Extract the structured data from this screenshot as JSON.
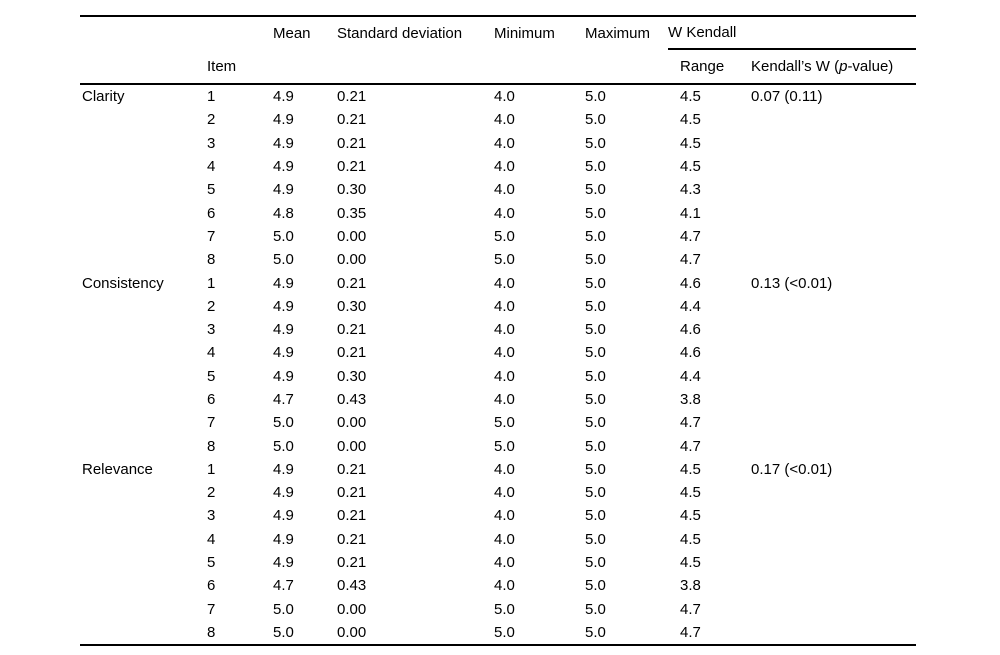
{
  "table": {
    "header": {
      "item": "Item",
      "mean": "Mean",
      "std_dev": "Standard deviation",
      "minimum": "Minimum",
      "maximum": "Maximum",
      "w_kendall_group": "W Kendall",
      "range": "Range",
      "kendalls_w_prefix": "Kendall’s W (",
      "kendalls_w_italic": "p",
      "kendalls_w_suffix": "-value)"
    },
    "sections": [
      {
        "label": "Clarity",
        "kendalls_w": "0.07 (0.11)",
        "rows": [
          {
            "item": "1",
            "mean": "4.9",
            "sd": "0.21",
            "min": "4.0",
            "max": "5.0",
            "range": "4.5"
          },
          {
            "item": "2",
            "mean": "4.9",
            "sd": "0.21",
            "min": "4.0",
            "max": "5.0",
            "range": "4.5"
          },
          {
            "item": "3",
            "mean": "4.9",
            "sd": "0.21",
            "min": "4.0",
            "max": "5.0",
            "range": "4.5"
          },
          {
            "item": "4",
            "mean": "4.9",
            "sd": "0.21",
            "min": "4.0",
            "max": "5.0",
            "range": "4.5"
          },
          {
            "item": "5",
            "mean": "4.9",
            "sd": "0.30",
            "min": "4.0",
            "max": "5.0",
            "range": "4.3"
          },
          {
            "item": "6",
            "mean": "4.8",
            "sd": "0.35",
            "min": "4.0",
            "max": "5.0",
            "range": "4.1"
          },
          {
            "item": "7",
            "mean": "5.0",
            "sd": "0.00",
            "min": "5.0",
            "max": "5.0",
            "range": "4.7"
          },
          {
            "item": "8",
            "mean": "5.0",
            "sd": "0.00",
            "min": "5.0",
            "max": "5.0",
            "range": "4.7"
          }
        ]
      },
      {
        "label": "Consistency",
        "kendalls_w": "0.13 (<0.01)",
        "rows": [
          {
            "item": "1",
            "mean": "4.9",
            "sd": "0.21",
            "min": "4.0",
            "max": "5.0",
            "range": "4.6"
          },
          {
            "item": "2",
            "mean": "4.9",
            "sd": "0.30",
            "min": "4.0",
            "max": "5.0",
            "range": "4.4"
          },
          {
            "item": "3",
            "mean": "4.9",
            "sd": "0.21",
            "min": "4.0",
            "max": "5.0",
            "range": "4.6"
          },
          {
            "item": "4",
            "mean": "4.9",
            "sd": "0.21",
            "min": "4.0",
            "max": "5.0",
            "range": "4.6"
          },
          {
            "item": "5",
            "mean": "4.9",
            "sd": "0.30",
            "min": "4.0",
            "max": "5.0",
            "range": "4.4"
          },
          {
            "item": "6",
            "mean": "4.7",
            "sd": "0.43",
            "min": "4.0",
            "max": "5.0",
            "range": "3.8"
          },
          {
            "item": "7",
            "mean": "5.0",
            "sd": "0.00",
            "min": "5.0",
            "max": "5.0",
            "range": "4.7"
          },
          {
            "item": "8",
            "mean": "5.0",
            "sd": "0.00",
            "min": "5.0",
            "max": "5.0",
            "range": "4.7"
          }
        ]
      },
      {
        "label": "Relevance",
        "kendalls_w": "0.17 (<0.01)",
        "rows": [
          {
            "item": "1",
            "mean": "4.9",
            "sd": "0.21",
            "min": "4.0",
            "max": "5.0",
            "range": "4.5"
          },
          {
            "item": "2",
            "mean": "4.9",
            "sd": "0.21",
            "min": "4.0",
            "max": "5.0",
            "range": "4.5"
          },
          {
            "item": "3",
            "mean": "4.9",
            "sd": "0.21",
            "min": "4.0",
            "max": "5.0",
            "range": "4.5"
          },
          {
            "item": "4",
            "mean": "4.9",
            "sd": "0.21",
            "min": "4.0",
            "max": "5.0",
            "range": "4.5"
          },
          {
            "item": "5",
            "mean": "4.9",
            "sd": "0.21",
            "min": "4.0",
            "max": "5.0",
            "range": "4.5"
          },
          {
            "item": "6",
            "mean": "4.7",
            "sd": "0.43",
            "min": "4.0",
            "max": "5.0",
            "range": "3.8"
          },
          {
            "item": "7",
            "mean": "5.0",
            "sd": "0.00",
            "min": "5.0",
            "max": "5.0",
            "range": "4.7"
          },
          {
            "item": "8",
            "mean": "5.0",
            "sd": "0.00",
            "min": "5.0",
            "max": "5.0",
            "range": "4.7"
          }
        ]
      }
    ]
  },
  "colors": {
    "text": "#000000",
    "background": "#ffffff",
    "rule": "#000000"
  }
}
